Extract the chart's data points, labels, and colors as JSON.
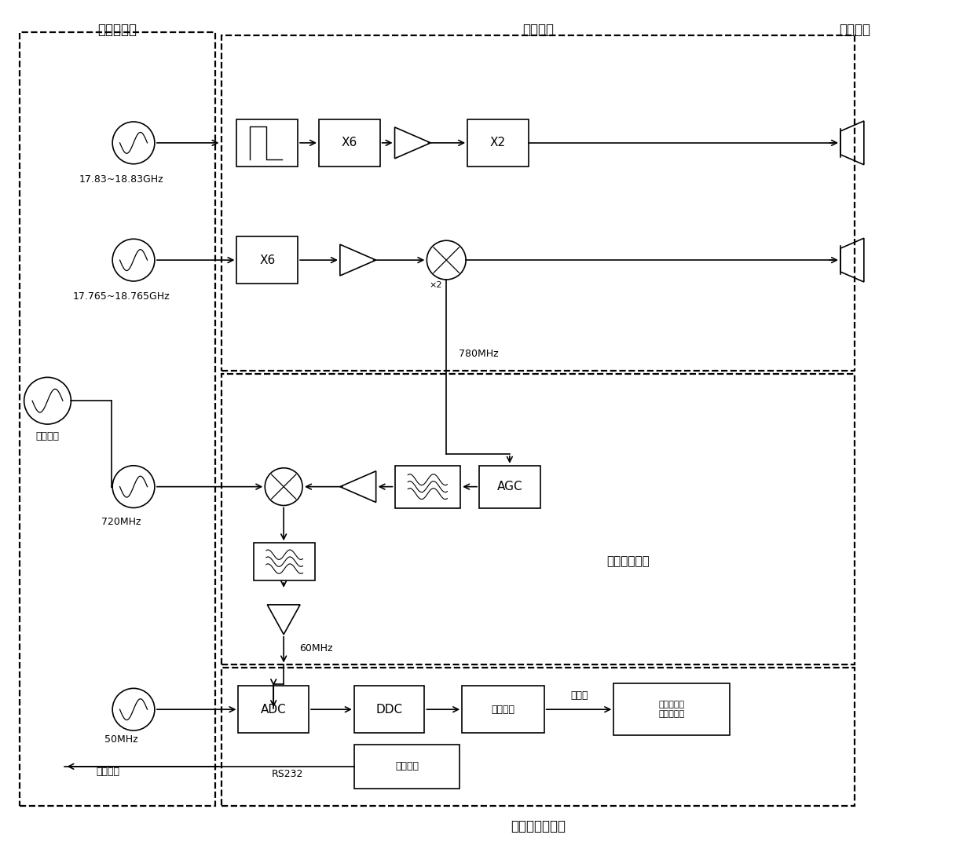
{
  "bg": "#ffffff",
  "lc": "#000000",
  "fs": 11,
  "fs_s": 9,
  "fs_t": 12,
  "labels": {
    "freq_synth": "频率综合器",
    "rf_front": "射频前端",
    "horn_ant": "喇叭天线",
    "digital_if": "数字中频模块",
    "signal_board": "信号采集处理板",
    "ref_clock": "参考时钟",
    "sample_clock": "采样时钟",
    "freq1": "17.83~18.83GHz",
    "freq2": "17.765~18.765GHz",
    "f720": "720MHz",
    "f50": "50MHz",
    "f780": "780MHz",
    "f60": "60MHz",
    "rs232": "RS232",
    "ethernet": "以太网",
    "upper_pc": "上位机和图\n像显示单元",
    "sys_ctrl": "系统控制",
    "data_store": "数据存储",
    "DDC": "DDC",
    "ADC": "ADC",
    "AGC": "AGC",
    "x6": "X6",
    "x2_box": "X2",
    "x2_small": "×2"
  }
}
